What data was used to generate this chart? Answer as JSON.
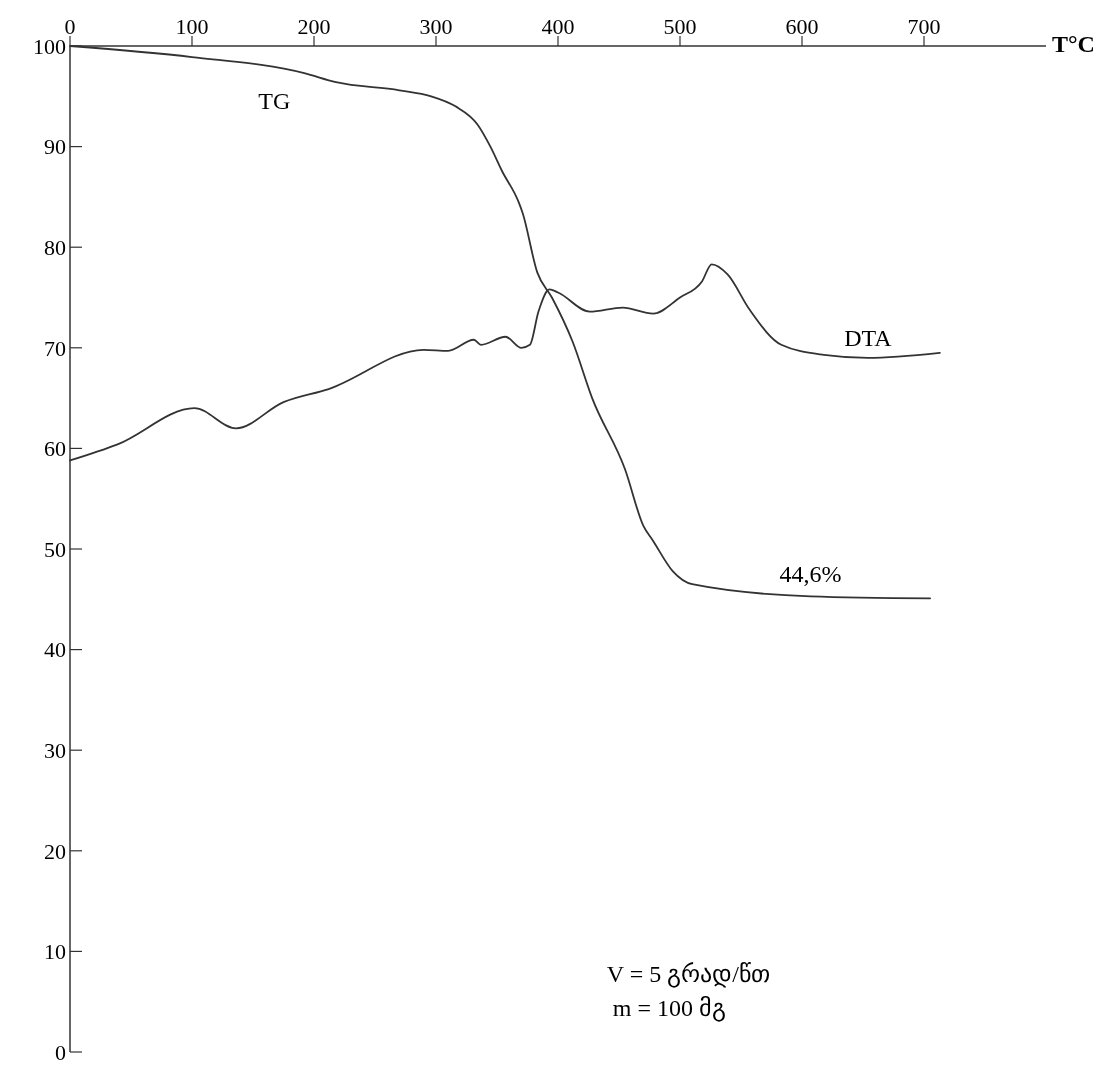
{
  "chart_data": {
    "type": "line",
    "xlabel": "T°C",
    "xlim": [
      0,
      800
    ],
    "xticks": [
      0,
      100,
      200,
      300,
      400,
      500,
      600,
      700
    ],
    "ylim": [
      0,
      100
    ],
    "yticks": [
      0,
      10,
      20,
      30,
      40,
      50,
      60,
      70,
      80,
      90,
      100
    ],
    "grid": false,
    "marker": "none",
    "line_style": "solid",
    "series": [
      {
        "name": "TG",
        "color": "#333333",
        "x": [
          0,
          100,
          192,
          218,
          270,
          296,
          316,
          334,
          345,
          354,
          368,
          371,
          383,
          395,
          412,
          428,
          455,
          470,
          478,
          494,
          510,
          607,
          705
        ],
        "values": [
          100,
          98.9,
          97.3,
          96.4,
          95.6,
          95.0,
          94.0,
          92.2,
          89.9,
          87.6,
          84.4,
          83.4,
          77.5,
          75.0,
          70.6,
          65.0,
          57.9,
          52.3,
          50.8,
          47.8,
          46.5,
          45.3,
          45.1
        ]
      },
      {
        "name": "DTA",
        "color": "#333333",
        "x": [
          0,
          39,
          102,
          136,
          175,
          212,
          290,
          310,
          331,
          337,
          357,
          370,
          377,
          384,
          393,
          400,
          426,
          453,
          478,
          500,
          518,
          526,
          539,
          557,
          583,
          618,
          654,
          713
        ],
        "values": [
          58.8,
          60.4,
          64.0,
          62.0,
          64.6,
          65.9,
          69.8,
          69.7,
          70.8,
          70.3,
          71.1,
          70.0,
          70.3,
          73.6,
          75.8,
          75.5,
          73.6,
          74.0,
          73.4,
          75.0,
          76.6,
          78.3,
          77.3,
          73.8,
          70.3,
          69.3,
          69.0,
          69.5
        ]
      }
    ],
    "annotations": [
      "44,6%",
      "V = 5 გრად/წთ",
      "m = 100 მგ"
    ]
  }
}
